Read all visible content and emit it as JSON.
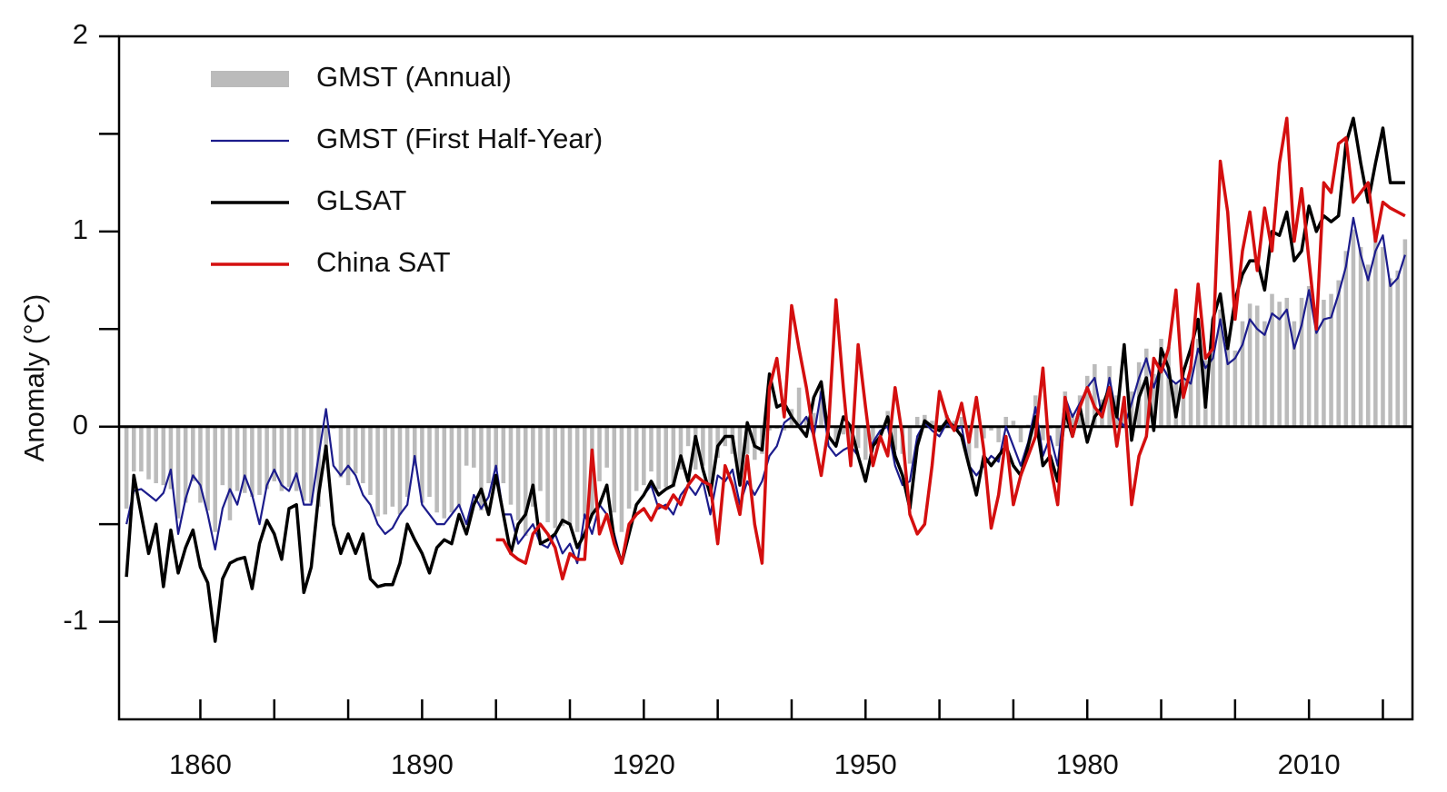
{
  "chart_data": {
    "type": "line",
    "y_label": "Anomaly (°C)",
    "xlim": [
      1849,
      2024
    ],
    "ylim": [
      -1.5,
      2
    ],
    "xticks": [
      1860,
      1890,
      1920,
      1950,
      1980,
      2010
    ],
    "xminor_ticks": [
      1870,
      1880,
      1900,
      1910,
      1930,
      1940,
      1960,
      1970,
      1990,
      2000,
      2020
    ],
    "yticks": [
      -1,
      0,
      1,
      2
    ],
    "yminor_ticks": [
      -0.5,
      0.5,
      1.5
    ],
    "legend": "top-left",
    "x": [
      1850,
      1851,
      1852,
      1853,
      1854,
      1855,
      1856,
      1857,
      1858,
      1859,
      1860,
      1861,
      1862,
      1863,
      1864,
      1865,
      1866,
      1867,
      1868,
      1869,
      1870,
      1871,
      1872,
      1873,
      1874,
      1875,
      1876,
      1877,
      1878,
      1879,
      1880,
      1881,
      1882,
      1883,
      1884,
      1885,
      1886,
      1887,
      1888,
      1889,
      1890,
      1891,
      1892,
      1893,
      1894,
      1895,
      1896,
      1897,
      1898,
      1899,
      1900,
      1901,
      1902,
      1903,
      1904,
      1905,
      1906,
      1907,
      1908,
      1909,
      1910,
      1911,
      1912,
      1913,
      1914,
      1915,
      1916,
      1917,
      1918,
      1919,
      1920,
      1921,
      1922,
      1923,
      1924,
      1925,
      1926,
      1927,
      1928,
      1929,
      1930,
      1931,
      1932,
      1933,
      1934,
      1935,
      1936,
      1937,
      1938,
      1939,
      1940,
      1941,
      1942,
      1943,
      1944,
      1945,
      1946,
      1947,
      1948,
      1949,
      1950,
      1951,
      1952,
      1953,
      1954,
      1955,
      1956,
      1957,
      1958,
      1959,
      1960,
      1961,
      1962,
      1963,
      1964,
      1965,
      1966,
      1967,
      1968,
      1969,
      1970,
      1971,
      1972,
      1973,
      1974,
      1975,
      1976,
      1977,
      1978,
      1979,
      1980,
      1981,
      1982,
      1983,
      1984,
      1985,
      1986,
      1987,
      1988,
      1989,
      1990,
      1991,
      1992,
      1993,
      1994,
      1995,
      1996,
      1997,
      1998,
      1999,
      2000,
      2001,
      2002,
      2003,
      2004,
      2005,
      2006,
      2007,
      2008,
      2009,
      2010,
      2011,
      2012,
      2013,
      2014,
      2015,
      2016,
      2017,
      2018,
      2019,
      2020,
      2021,
      2022,
      2023
    ],
    "series": [
      {
        "name": "GMST (Annual)",
        "type": "bar",
        "color": "#bbbbbb",
        "values": [
          -0.42,
          -0.23,
          -0.23,
          -0.27,
          -0.29,
          -0.3,
          -0.32,
          -0.47,
          -0.39,
          -0.28,
          -0.39,
          -0.43,
          -0.54,
          -0.3,
          -0.48,
          -0.33,
          -0.34,
          -0.36,
          -0.35,
          -0.32,
          -0.28,
          -0.33,
          -0.31,
          -0.33,
          -0.38,
          -0.39,
          -0.41,
          -0.12,
          -0.01,
          -0.26,
          -0.3,
          -0.24,
          -0.29,
          -0.35,
          -0.46,
          -0.45,
          -0.41,
          -0.45,
          -0.36,
          -0.2,
          -0.39,
          -0.36,
          -0.44,
          -0.47,
          -0.44,
          -0.41,
          -0.2,
          -0.21,
          -0.43,
          -0.29,
          -0.22,
          -0.29,
          -0.4,
          -0.48,
          -0.56,
          -0.41,
          -0.33,
          -0.49,
          -0.52,
          -0.51,
          -0.5,
          -0.54,
          -0.46,
          -0.45,
          -0.28,
          -0.21,
          -0.44,
          -0.54,
          -0.42,
          -0.33,
          -0.3,
          -0.23,
          -0.32,
          -0.31,
          -0.31,
          -0.22,
          -0.1,
          -0.22,
          -0.2,
          -0.36,
          -0.16,
          -0.1,
          -0.14,
          -0.28,
          -0.14,
          -0.17,
          -0.14,
          -0.02,
          -0.01,
          -0.02,
          0.09,
          0.2,
          0.05,
          0.07,
          0.2,
          0.05,
          -0.07,
          -0.04,
          -0.11,
          -0.11,
          -0.17,
          -0.07,
          0.01,
          0.08,
          -0.12,
          -0.14,
          -0.19,
          0.05,
          0.06,
          0.03,
          -0.03,
          0.06,
          0.03,
          0.05,
          -0.2,
          -0.11,
          -0.06,
          -0.02,
          -0.08,
          0.05,
          0.03,
          -0.08,
          0.01,
          0.16,
          -0.07,
          -0.01,
          -0.1,
          0.18,
          0.07,
          0.16,
          0.26,
          0.32,
          0.14,
          0.31,
          0.16,
          0.12,
          0.18,
          0.33,
          0.4,
          0.27,
          0.45,
          0.41,
          0.22,
          0.24,
          0.31,
          0.45,
          0.34,
          0.47,
          0.6,
          0.4,
          0.39,
          0.54,
          0.63,
          0.62,
          0.54,
          0.68,
          0.64,
          0.66,
          0.54,
          0.66,
          0.72,
          0.61,
          0.65,
          0.68,
          0.75,
          0.9,
          1.01,
          0.92,
          0.83,
          0.98,
          0.92,
          0.76,
          0.8,
          0.96
        ]
      },
      {
        "name": "GMST (First Half-Year)",
        "type": "line",
        "color": "#1c1c8c",
        "width": 2.2,
        "values": [
          -0.5,
          -0.33,
          -0.32,
          -0.35,
          -0.38,
          -0.34,
          -0.22,
          -0.55,
          -0.37,
          -0.25,
          -0.3,
          -0.45,
          -0.63,
          -0.42,
          -0.32,
          -0.4,
          -0.25,
          -0.35,
          -0.5,
          -0.3,
          -0.22,
          -0.3,
          -0.33,
          -0.24,
          -0.4,
          -0.4,
          -0.15,
          0.09,
          -0.2,
          -0.25,
          -0.2,
          -0.25,
          -0.35,
          -0.4,
          -0.5,
          -0.55,
          -0.52,
          -0.45,
          -0.4,
          -0.15,
          -0.4,
          -0.45,
          -0.5,
          -0.5,
          -0.45,
          -0.4,
          -0.5,
          -0.35,
          -0.42,
          -0.36,
          -0.2,
          -0.45,
          -0.45,
          -0.6,
          -0.55,
          -0.5,
          -0.6,
          -0.62,
          -0.55,
          -0.65,
          -0.6,
          -0.7,
          -0.45,
          -0.55,
          -0.4,
          -0.45,
          -0.55,
          -0.7,
          -0.55,
          -0.4,
          -0.35,
          -0.3,
          -0.42,
          -0.4,
          -0.45,
          -0.35,
          -0.3,
          -0.35,
          -0.28,
          -0.45,
          -0.25,
          -0.28,
          -0.22,
          -0.4,
          -0.28,
          -0.35,
          -0.28,
          -0.15,
          -0.1,
          0.02,
          0.05,
          0.0,
          0.05,
          -0.05,
          0.18,
          -0.1,
          -0.15,
          -0.12,
          -0.1,
          -0.15,
          -0.28,
          -0.08,
          -0.02,
          0.0,
          -0.2,
          -0.3,
          -0.28,
          -0.05,
          0.02,
          -0.02,
          -0.05,
          0.02,
          -0.02,
          0.0,
          -0.2,
          -0.25,
          -0.2,
          -0.15,
          -0.18,
          0.0,
          -0.1,
          -0.2,
          -0.08,
          0.1,
          -0.15,
          -0.05,
          -0.2,
          0.15,
          0.05,
          0.12,
          0.2,
          0.25,
          0.05,
          0.25,
          0.05,
          0.0,
          0.12,
          0.25,
          0.35,
          0.2,
          0.32,
          0.25,
          0.22,
          0.25,
          0.22,
          0.4,
          0.3,
          0.35,
          0.55,
          0.32,
          0.35,
          0.42,
          0.55,
          0.5,
          0.47,
          0.58,
          0.55,
          0.6,
          0.4,
          0.52,
          0.7,
          0.48,
          0.55,
          0.56,
          0.68,
          0.82,
          1.07,
          0.88,
          0.75,
          0.9,
          0.98,
          0.72,
          0.76,
          0.88
        ]
      },
      {
        "name": "GLSAT",
        "type": "line",
        "color": "#000000",
        "width": 3.5,
        "values": [
          -0.77,
          -0.25,
          -0.45,
          -0.65,
          -0.5,
          -0.82,
          -0.53,
          -0.75,
          -0.62,
          -0.53,
          -0.72,
          -0.8,
          -1.1,
          -0.78,
          -0.7,
          -0.68,
          -0.67,
          -0.83,
          -0.6,
          -0.48,
          -0.55,
          -0.68,
          -0.42,
          -0.4,
          -0.85,
          -0.72,
          -0.35,
          -0.1,
          -0.5,
          -0.65,
          -0.55,
          -0.65,
          -0.55,
          -0.78,
          -0.82,
          -0.81,
          -0.81,
          -0.7,
          -0.5,
          -0.58,
          -0.65,
          -0.75,
          -0.62,
          -0.58,
          -0.6,
          -0.45,
          -0.55,
          -0.4,
          -0.32,
          -0.45,
          -0.25,
          -0.45,
          -0.65,
          -0.5,
          -0.45,
          -0.3,
          -0.6,
          -0.58,
          -0.55,
          -0.48,
          -0.5,
          -0.62,
          -0.55,
          -0.45,
          -0.4,
          -0.3,
          -0.58,
          -0.7,
          -0.55,
          -0.4,
          -0.35,
          -0.28,
          -0.35,
          -0.32,
          -0.3,
          -0.15,
          -0.28,
          -0.05,
          -0.22,
          -0.35,
          -0.1,
          -0.05,
          -0.05,
          -0.3,
          0.02,
          -0.1,
          -0.12,
          0.27,
          0.1,
          0.12,
          0.05,
          0.0,
          -0.05,
          0.15,
          0.23,
          -0.05,
          -0.1,
          0.05,
          0.0,
          -0.15,
          -0.28,
          -0.1,
          -0.05,
          0.05,
          -0.15,
          -0.25,
          -0.42,
          -0.1,
          0.03,
          0.0,
          -0.02,
          0.03,
          0.0,
          -0.05,
          -0.2,
          -0.35,
          -0.15,
          -0.2,
          -0.15,
          -0.1,
          -0.2,
          -0.25,
          -0.1,
          0.05,
          -0.2,
          -0.15,
          -0.28,
          0.08,
          -0.05,
          0.1,
          -0.08,
          0.05,
          0.1,
          0.2,
          0.05,
          0.42,
          -0.07,
          0.15,
          0.25,
          -0.02,
          0.4,
          0.3,
          0.05,
          0.28,
          0.4,
          0.55,
          0.1,
          0.55,
          0.68,
          0.4,
          0.65,
          0.78,
          0.85,
          0.85,
          0.7,
          1.0,
          0.98,
          1.1,
          0.85,
          0.9,
          1.13,
          1.0,
          1.08,
          1.05,
          1.08,
          1.45,
          1.58,
          1.35,
          1.15,
          1.35,
          1.53,
          1.25,
          1.25,
          1.25
        ]
      },
      {
        "name": "China SAT",
        "type": "line",
        "color": "#d40f0f",
        "width": 3.5,
        "values": [
          null,
          null,
          null,
          null,
          null,
          null,
          null,
          null,
          null,
          null,
          null,
          null,
          null,
          null,
          null,
          null,
          null,
          null,
          null,
          null,
          null,
          null,
          null,
          null,
          null,
          null,
          null,
          null,
          null,
          null,
          null,
          null,
          null,
          null,
          null,
          null,
          null,
          null,
          null,
          null,
          null,
          null,
          null,
          null,
          null,
          null,
          null,
          null,
          null,
          null,
          -0.58,
          -0.58,
          -0.65,
          -0.68,
          -0.7,
          -0.55,
          -0.5,
          -0.55,
          -0.62,
          -0.78,
          -0.65,
          -0.68,
          -0.68,
          -0.12,
          -0.55,
          -0.45,
          -0.6,
          -0.7,
          -0.5,
          -0.45,
          -0.42,
          -0.48,
          -0.4,
          -0.42,
          -0.35,
          -0.4,
          -0.3,
          -0.25,
          -0.28,
          -0.3,
          -0.6,
          -0.2,
          -0.3,
          -0.45,
          -0.15,
          -0.5,
          -0.7,
          0.2,
          0.35,
          0.05,
          0.62,
          0.4,
          0.2,
          -0.05,
          -0.25,
          0.0,
          0.65,
          0.2,
          -0.2,
          0.42,
          0.1,
          -0.2,
          -0.05,
          -0.15,
          0.2,
          -0.05,
          -0.45,
          -0.55,
          -0.5,
          -0.2,
          0.18,
          0.05,
          -0.02,
          0.12,
          -0.08,
          0.15,
          -0.12,
          -0.52,
          -0.35,
          -0.05,
          -0.4,
          -0.25,
          -0.15,
          -0.05,
          0.3,
          -0.2,
          -0.4,
          0.15,
          -0.05,
          0.1,
          0.2,
          0.1,
          0.05,
          0.2,
          -0.1,
          0.15,
          -0.4,
          -0.15,
          -0.05,
          0.35,
          0.28,
          0.4,
          0.7,
          0.15,
          0.3,
          0.73,
          0.35,
          0.4,
          1.36,
          1.1,
          0.55,
          0.9,
          1.1,
          0.8,
          1.12,
          0.9,
          1.35,
          1.58,
          0.95,
          1.22,
          0.85,
          0.5,
          1.25,
          1.2,
          1.45,
          1.48,
          1.15,
          1.2,
          1.25,
          0.95,
          1.15,
          1.12,
          1.1,
          1.08
        ]
      }
    ]
  }
}
